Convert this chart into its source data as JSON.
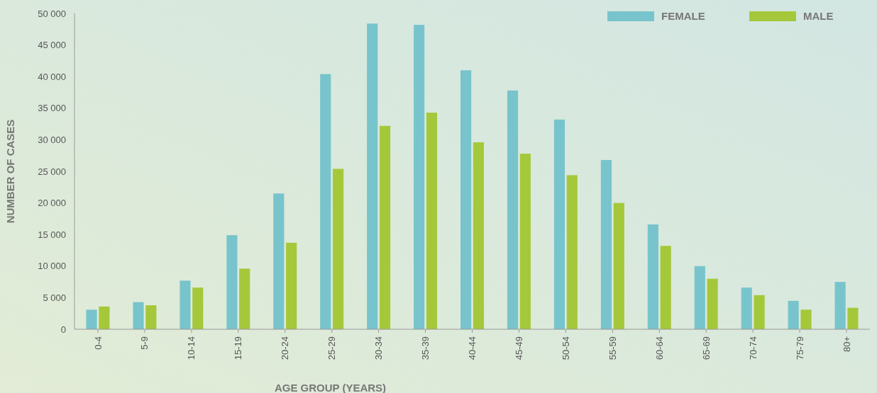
{
  "chart_data": {
    "type": "bar",
    "xlabel": "AGE GROUP (YEARS)",
    "ylabel": "NUMBER OF CASES",
    "categories": [
      "0-4",
      "5-9",
      "10-14",
      "15-19",
      "20-24",
      "25-29",
      "30-34",
      "35-39",
      "40-44",
      "45-49",
      "50-54",
      "55-59",
      "60-64",
      "65-69",
      "70-74",
      "75-79",
      "80+"
    ],
    "series": [
      {
        "name": "FEMALE",
        "color": "#78c4cc",
        "values": [
          3100,
          4300,
          7700,
          14900,
          21500,
          40400,
          48400,
          48200,
          41000,
          37800,
          33200,
          26800,
          16600,
          10000,
          6600,
          4500,
          7500
        ]
      },
      {
        "name": "MALE",
        "color": "#a5c83a",
        "values": [
          3600,
          3800,
          6600,
          9600,
          13700,
          25400,
          32200,
          34300,
          29600,
          27800,
          24400,
          20000,
          13200,
          8000,
          5400,
          3100,
          3400
        ]
      }
    ],
    "ylim": [
      0,
      50000
    ],
    "yticks": [
      {
        "value": 0,
        "label": "0"
      },
      {
        "value": 5000,
        "label": "5 000"
      },
      {
        "value": 10000,
        "label": "10 000"
      },
      {
        "value": 15000,
        "label": "15 000"
      },
      {
        "value": 20000,
        "label": "20 000"
      },
      {
        "value": 25000,
        "label": "25 000"
      },
      {
        "value": 30000,
        "label": "30 000"
      },
      {
        "value": 35000,
        "label": "35 000"
      },
      {
        "value": 40000,
        "label": "40 000"
      },
      {
        "value": 45000,
        "label": "45 000"
      },
      {
        "value": 50000,
        "label": "50 000"
      }
    ],
    "grid": false,
    "legend": "top right"
  }
}
